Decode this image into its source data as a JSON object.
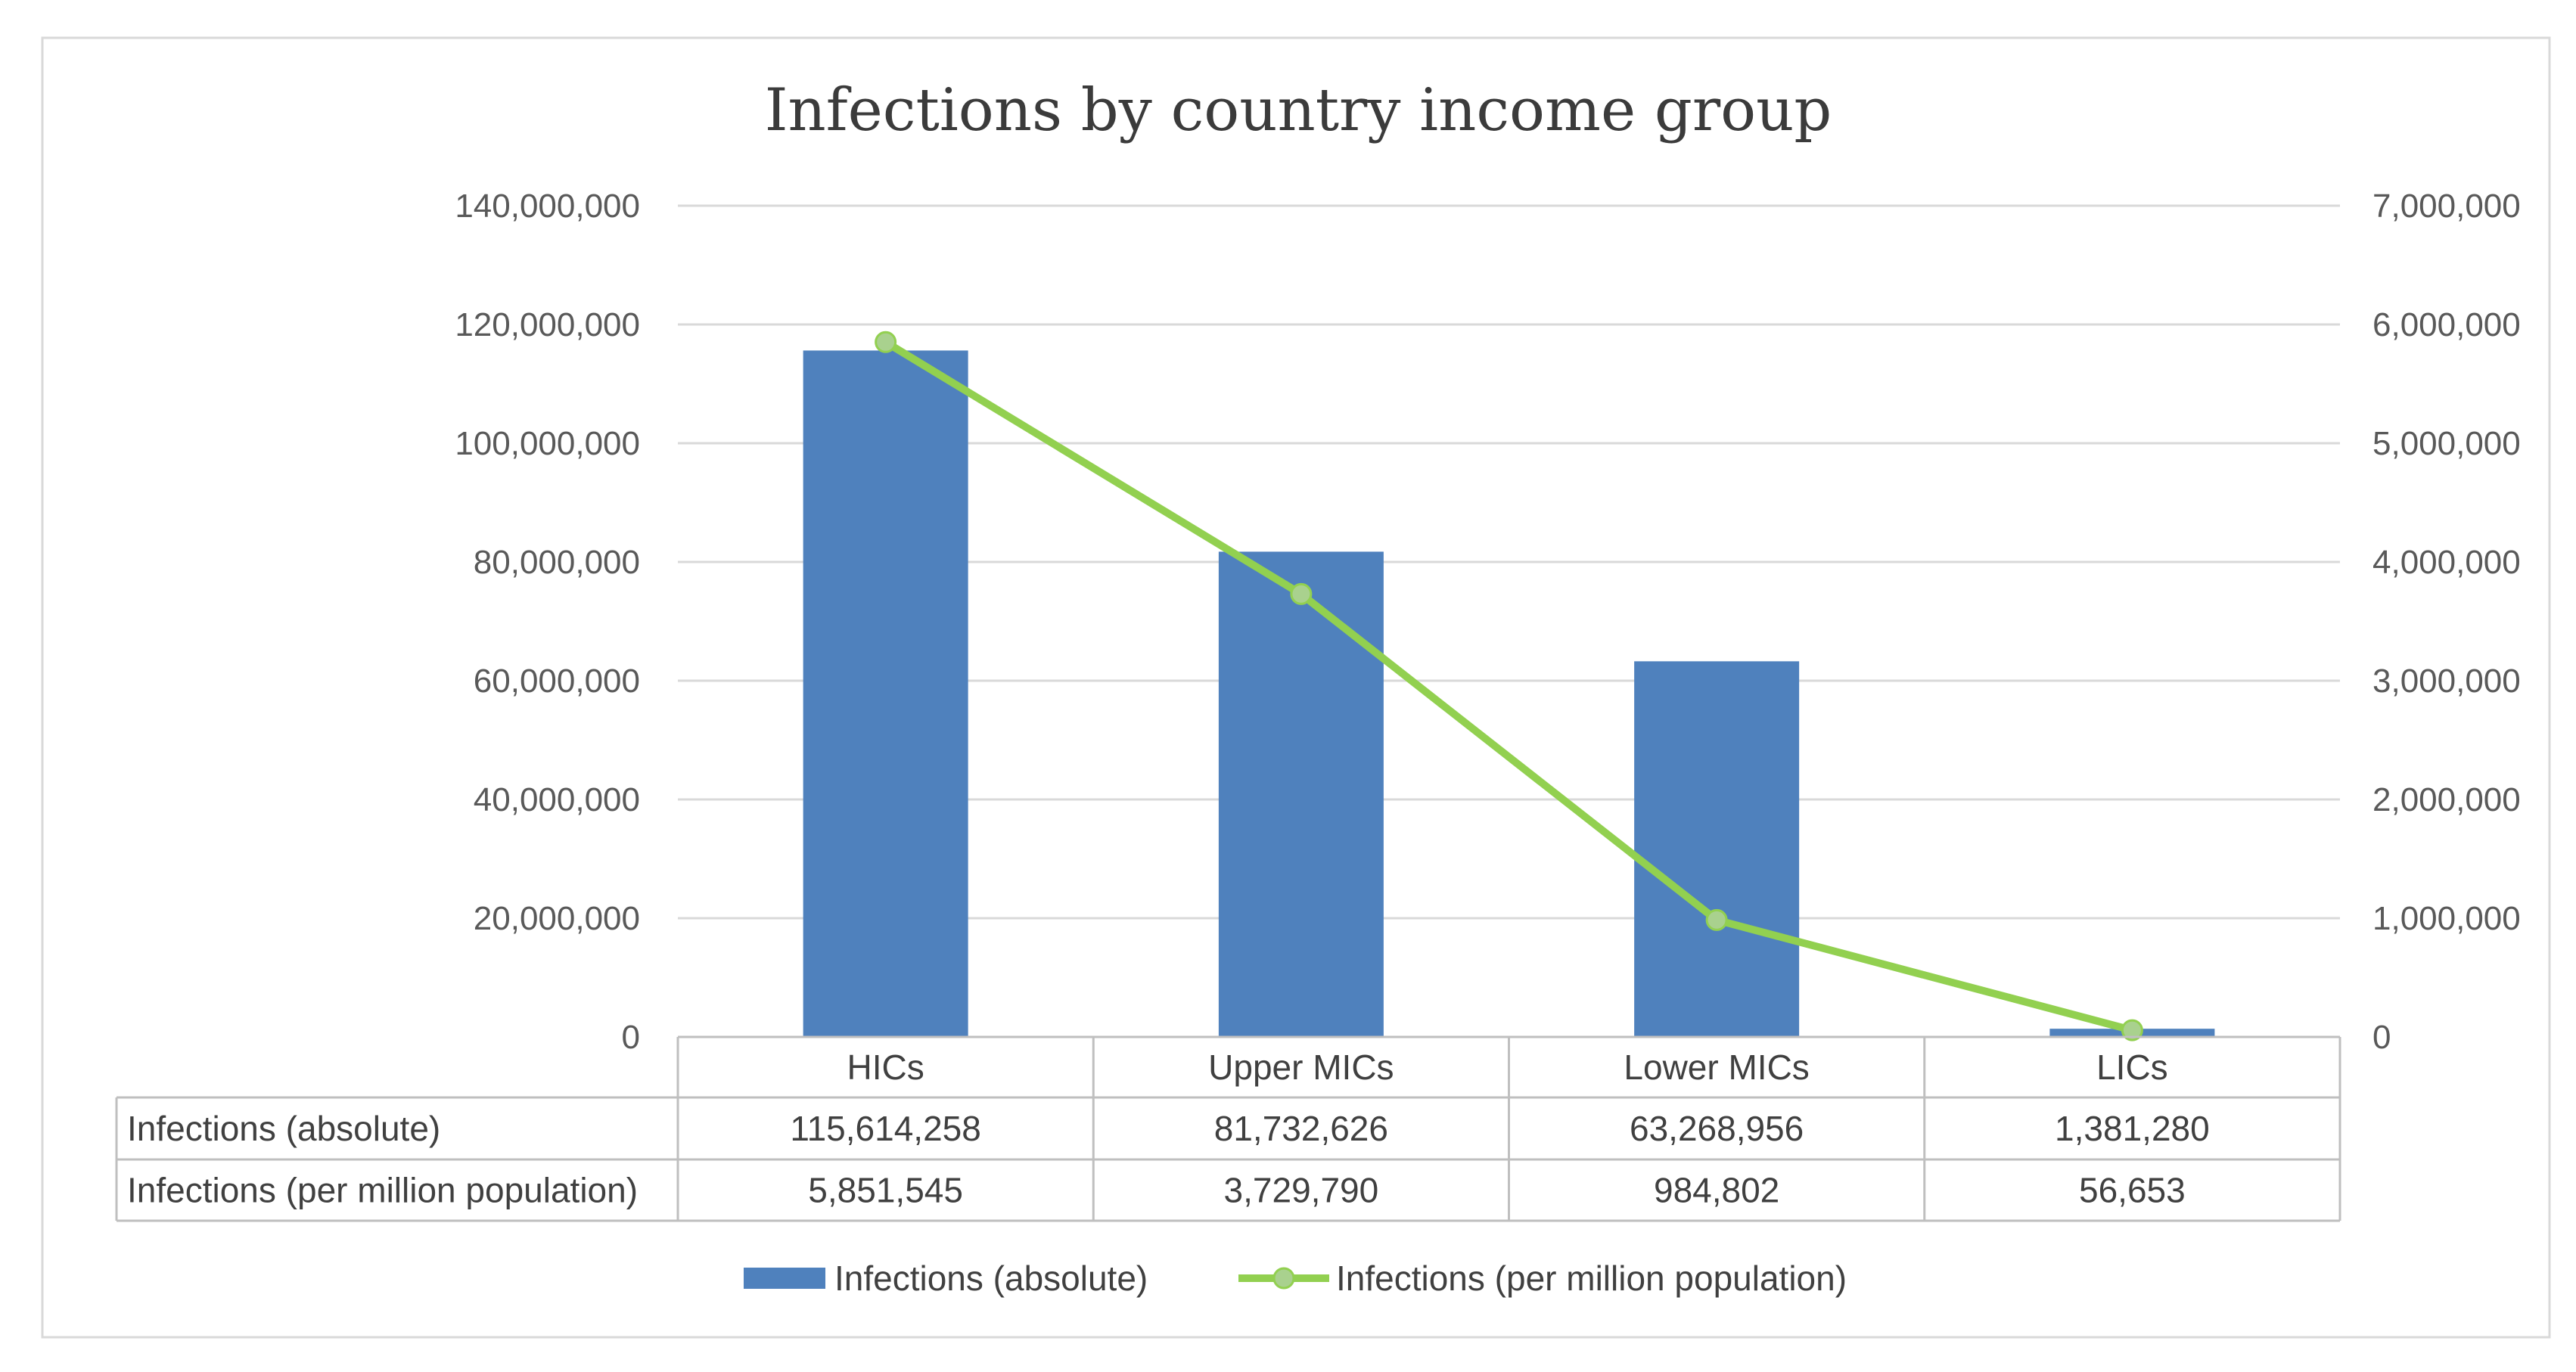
{
  "chart_data": {
    "type": "bar",
    "title": "Infections by country income group",
    "categories": [
      "HICs",
      "Upper MICs",
      "Lower MICs",
      "LICs"
    ],
    "series": [
      {
        "name": "Infections (absolute)",
        "type": "bar",
        "axis": "left",
        "color": "#4f81bd",
        "values": [
          115614258,
          81732626,
          63268956,
          1381280
        ],
        "labels": [
          "115,614,258",
          "81,732,626",
          "63,268,956",
          "1,381,280"
        ]
      },
      {
        "name": "Infections (per million population)",
        "type": "line",
        "axis": "right",
        "color": "#92d050",
        "values": [
          5851545,
          3729790,
          984802,
          56653
        ],
        "labels": [
          "5,851,545",
          "3,729,790",
          "984,802",
          "56,653"
        ]
      }
    ],
    "ylim_left": [
      0,
      140000000
    ],
    "ylim_right": [
      0,
      7000000
    ],
    "yticks_left": [
      "0",
      "20,000,000",
      "40,000,000",
      "60,000,000",
      "80,000,000",
      "100,000,000",
      "120,000,000",
      "140,000,000"
    ],
    "yticks_right": [
      "0",
      "1,000,000",
      "2,000,000",
      "3,000,000",
      "4,000,000",
      "5,000,000",
      "6,000,000",
      "7,000,000"
    ],
    "xlabel": "",
    "ylabel": "",
    "grid": true,
    "legend_position": "bottom",
    "data_table": true
  }
}
